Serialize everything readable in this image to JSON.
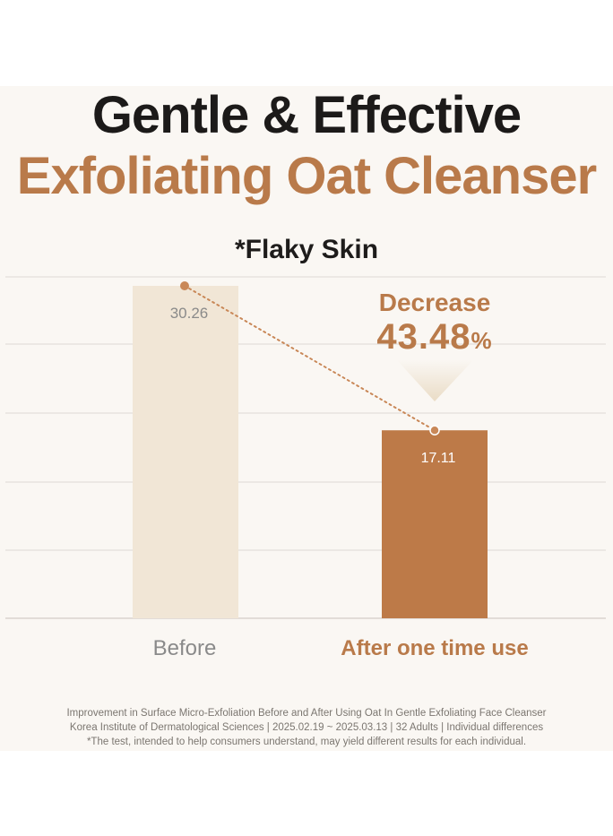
{
  "header": {
    "line1": "Gentle & Effective",
    "line2": "Exfoliating Oat Cleanser"
  },
  "callout": {
    "label": "Decrease",
    "value": "43.48",
    "unit": "%"
  },
  "footnotes": [
    "Improvement in Surface Micro-Exfoliation Before and After Using Oat In Gentle Exfoliating Face Cleanser",
    "Korea Institute of Dermatological Sciences | 2025.02.19 ~ 2025.03.13 | 32 Adults | Individual differences",
    "*The test, intended to help consumers understand, may yield different results for each individual."
  ],
  "colors": {
    "before_bar": "#f1e6d6",
    "after_bar": "#bd7a48",
    "accent": "#b97a4a",
    "dots": "#c98858",
    "gridline": "#e3dfda"
  },
  "chart_data": {
    "type": "bar",
    "title": "*Flaky Skin",
    "categories": [
      "Before",
      "After one time use"
    ],
    "values": [
      30.26,
      17.11
    ],
    "value_labels": [
      "30.26",
      "17.11"
    ],
    "ylim": [
      0,
      30.26
    ],
    "grid": true,
    "legend": "none",
    "annotation": "connecting dotted line with markers at bar tops"
  }
}
